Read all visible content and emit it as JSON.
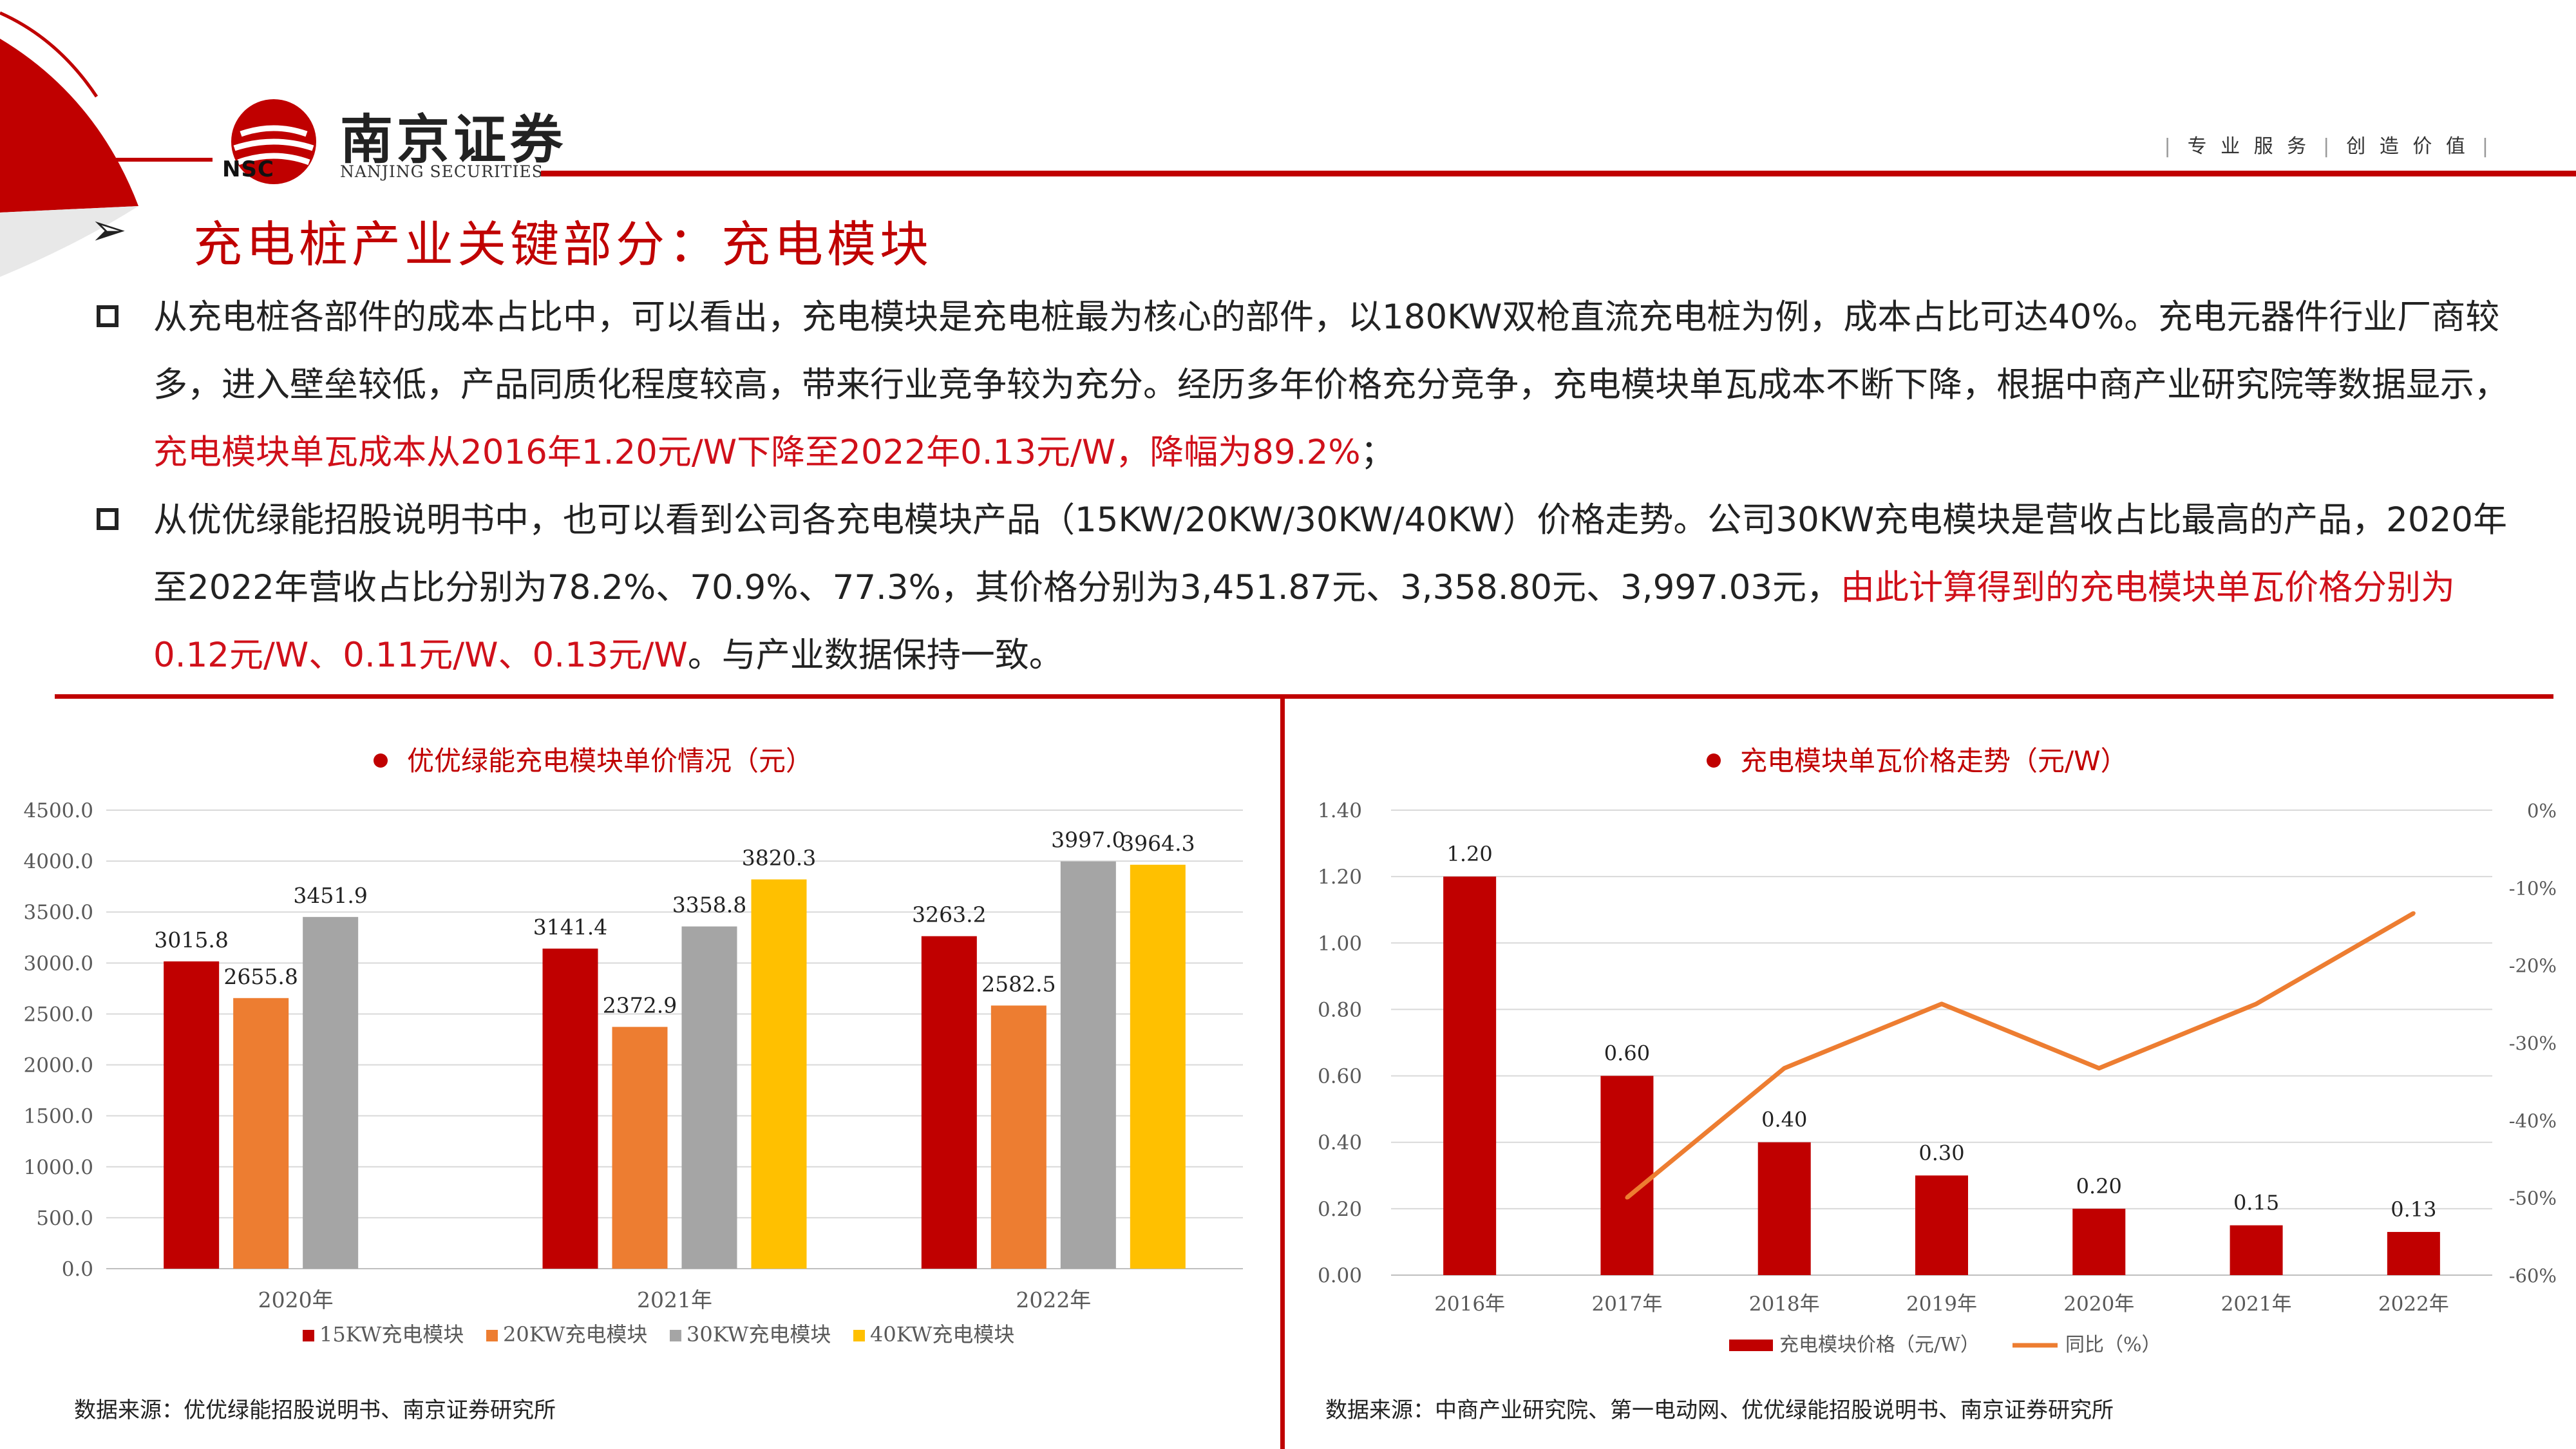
{
  "header": {
    "logo_cn": "南京证券",
    "logo_abbr": "NSC",
    "logo_en": "NANJING SECURITIES",
    "slogan_parts": [
      "专 业 服 务",
      "创 造 价 值"
    ]
  },
  "title": "充电桩产业关键部分：充电模块",
  "bullets": [
    {
      "normal": "从充电桩各部件的成本占比中，可以看出，充电模块是充电桩最为核心的部件，以180KW双枪直流充电桩为例，成本占比可达40%。充电元器件行业厂商较多，进入壁垒较低，产品同质化程度较高，带来行业竞争较为充分。经历多年价格充分竞争，充电模块单瓦成本不断下降，根据中商产业研究院等数据显示，",
      "highlight": "充电模块单瓦成本从2016年1.20元/W下降至2022年0.13元/W，降幅为89.2%",
      "tail": "；"
    },
    {
      "normal": "从优优绿能招股说明书中，也可以看到公司各充电模块产品（15KW/20KW/30KW/40KW）价格走势。公司30KW充电模块是营收占比最高的产品，2020年至2022年营收占比分别为78.2%、70.9%、77.3%，其价格分别为3,451.87元、3,358.80元、3,997.03元，",
      "highlight": "由此计算得到的充电模块单瓦价格分别为0.12元/W、0.11元/W、0.13元/W",
      "tail": "。与产业数据保持一致。"
    }
  ],
  "colors": {
    "brand_red": "#c00000",
    "highlight_red": "#d0101a",
    "s15": "#c00000",
    "s20": "#ed7d31",
    "s30": "#a5a5a5",
    "s40": "#ffc000",
    "line_orange": "#ed7d31"
  },
  "chart_data": [
    {
      "type": "bar",
      "title": "优优绿能充电模块单价情况（元）",
      "categories": [
        "2020年",
        "2021年",
        "2022年"
      ],
      "series": [
        {
          "name": "15KW充电模块",
          "values": [
            3015.8,
            3141.4,
            3263.2
          ],
          "labels": [
            "3015.8",
            "3141.4",
            "3263.2"
          ]
        },
        {
          "name": "20KW充电模块",
          "values": [
            2655.8,
            2372.9,
            2582.5
          ],
          "labels": [
            "2655.8",
            "2372.9",
            "2582.5"
          ]
        },
        {
          "name": "30KW充电模块",
          "values": [
            3451.9,
            3358.8,
            3997.0
          ],
          "labels": [
            "3451.9",
            "3358.8",
            "3997.0"
          ]
        },
        {
          "name": "40KW充电模块",
          "values": [
            null,
            3820.3,
            3964.3
          ],
          "labels": [
            "",
            "3820.3",
            "3964.3"
          ]
        }
      ],
      "yticks": [
        "0.0",
        "500.0",
        "1000.0",
        "1500.0",
        "2000.0",
        "2500.0",
        "3000.0",
        "3500.0",
        "4000.0",
        "4500.0"
      ],
      "ylim": [
        0,
        4500
      ],
      "grid": true,
      "legend": "bottom",
      "source": "数据来源：优优绿能招股说明书、南京证券研究所"
    },
    {
      "type": "bar+line",
      "title": "充电模块单瓦价格走势（元/W）",
      "categories": [
        "2016年",
        "2017年",
        "2018年",
        "2019年",
        "2020年",
        "2021年",
        "2022年"
      ],
      "series": [
        {
          "name": "充电模块价格（元/W）",
          "type": "bar",
          "axis": "left",
          "values": [
            1.2,
            0.6,
            0.4,
            0.3,
            0.2,
            0.15,
            0.13
          ],
          "labels": [
            "1.20",
            "0.60",
            "0.40",
            "0.30",
            "0.20",
            "0.15",
            "0.13"
          ]
        },
        {
          "name": "同比（%）",
          "type": "line",
          "axis": "right",
          "values": [
            null,
            -50,
            -33.3,
            -25,
            -33.3,
            -25,
            -13.3
          ]
        }
      ],
      "yticks_left": [
        "0.00",
        "0.20",
        "0.40",
        "0.60",
        "0.80",
        "1.00",
        "1.20",
        "1.40"
      ],
      "ylim_left": [
        0,
        1.4
      ],
      "yticks_right": [
        "-60%",
        "-50%",
        "-40%",
        "-30%",
        "-20%",
        "-10%",
        "0%"
      ],
      "ylim_right": [
        -60,
        0
      ],
      "grid": true,
      "legend": "bottom",
      "source": "数据来源：中商产业研究院、第一电动网、优优绿能招股说明书、南京证券研究所"
    }
  ]
}
